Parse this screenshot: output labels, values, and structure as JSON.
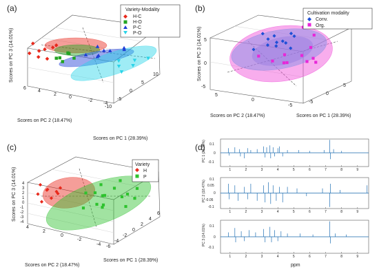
{
  "chart_data": [
    {
      "panel": "(a)",
      "type": "scatter",
      "xlabel": "Scores on PC 1 (28.39%)",
      "ylabel": "Scores on PC 2 (18.47%)",
      "zlabel": "Scores on PC 3 (14.01%)",
      "x_ticks": [
        "-10",
        "-5",
        "0",
        "5",
        "10"
      ],
      "y_ticks": [
        "-4",
        "-2",
        "0",
        "2",
        "4",
        "6"
      ],
      "z_ticks": [],
      "legend_title": "Variety-Modality",
      "legend_position": "top-right",
      "series": [
        {
          "name": "H-C",
          "color": "#e8291c",
          "marker": "diamond",
          "points": [
            [
              -6.5,
              3.5,
              2.2
            ],
            [
              -5,
              2.5,
              2.6
            ],
            [
              -4.2,
              3.8,
              1.8
            ],
            [
              -3.5,
              2,
              2.9
            ],
            [
              -6,
              1.5,
              1.6
            ],
            [
              -4.8,
              4.2,
              3.1
            ],
            [
              -3,
              2.8,
              2.2
            ],
            [
              -5.5,
              3,
              1.4
            ]
          ]
        },
        {
          "name": "H-O",
          "color": "#22a422",
          "marker": "square",
          "points": [
            [
              -4,
              1.2,
              1.2
            ],
            [
              -2.8,
              0.8,
              1.6
            ],
            [
              -3.5,
              2,
              0.8
            ],
            [
              -2,
              1.5,
              1.3
            ],
            [
              -4.5,
              0.5,
              0.9
            ],
            [
              -3,
              0,
              1.1
            ]
          ]
        },
        {
          "name": "P-C",
          "color": "#1f3fd6",
          "marker": "triangle-up",
          "points": [
            [
              1,
              -0.5,
              0.4
            ],
            [
              2.5,
              -1,
              0.8
            ],
            [
              3.5,
              0.5,
              0.2
            ],
            [
              0,
              0.5,
              0.6
            ],
            [
              4.5,
              -1.5,
              0.5
            ],
            [
              1.8,
              0.2,
              -0.2
            ],
            [
              5.5,
              -0.8,
              0.3
            ],
            [
              3,
              1,
              0.9
            ]
          ]
        },
        {
          "name": "P-O",
          "color": "#2ad4e8",
          "marker": "triangle-down",
          "points": [
            [
              2,
              -2.5,
              -1.2
            ],
            [
              4,
              -3,
              -1.6
            ],
            [
              3,
              -1.8,
              -0.8
            ],
            [
              5.5,
              -2.2,
              -1.4
            ],
            [
              1.5,
              -3.2,
              -1.8
            ],
            [
              6.2,
              -3.5,
              -1
            ]
          ]
        }
      ],
      "ellipses": [
        {
          "series": "H-C",
          "color": "#e8291c"
        },
        {
          "series": "H-O",
          "color": "#22a422"
        },
        {
          "series": "P-C",
          "color": "#1f3fd6"
        },
        {
          "series": "P-O",
          "color": "#2ad4e8"
        }
      ]
    },
    {
      "panel": "(b)",
      "type": "scatter",
      "xlabel": "Scores on PC 1 (28.39%)",
      "ylabel": "Scores on PC 2 (18.47%)",
      "zlabel": "Scores on PC 3 (14.01%)",
      "x_ticks": [
        "-5",
        "0",
        "5"
      ],
      "y_ticks": [
        "-5",
        "0",
        "5"
      ],
      "z_ticks": [
        "5",
        "0",
        "-5"
      ],
      "legend_title": "Cultivation modality",
      "legend_position": "top-right",
      "series": [
        {
          "name": "Conv.",
          "color": "#1f4fd6",
          "marker": "diamond",
          "points": [
            [
              -1,
              1,
              3
            ],
            [
              0,
              2,
              3.6
            ],
            [
              1,
              1.5,
              2.6
            ],
            [
              2,
              3,
              3.2
            ],
            [
              -2,
              2.5,
              2.2
            ],
            [
              3,
              1,
              3.7
            ],
            [
              1.5,
              -0.5,
              1.6
            ],
            [
              0.5,
              3.5,
              4.2
            ],
            [
              2.5,
              2,
              2.1
            ],
            [
              -0.5,
              0,
              2.8
            ],
            [
              3.5,
              2.5,
              1.2
            ],
            [
              4,
              1.5,
              2.6
            ]
          ]
        },
        {
          "name": "Org.",
          "color": "#e826d8",
          "marker": "square",
          "points": [
            [
              -3,
              -2,
              1.2
            ],
            [
              -2,
              -3,
              0.6
            ],
            [
              1,
              -4,
              -0.2
            ],
            [
              2,
              -2,
              0.2
            ],
            [
              3,
              -3,
              -0.6
            ],
            [
              0,
              -1,
              1
            ],
            [
              -1,
              -2.5,
              0.1
            ],
            [
              4,
              -1.5,
              0.9
            ],
            [
              5.5,
              -0.5,
              2.6
            ],
            [
              6,
              2,
              3.5
            ],
            [
              -3.5,
              0,
              2
            ],
            [
              2.5,
              -4,
              -1
            ]
          ]
        }
      ],
      "ellipses": [
        {
          "series": "Conv.",
          "color": "#33c8f0"
        },
        {
          "series": "Org.",
          "color": "#f04ad8"
        }
      ]
    },
    {
      "panel": "(c)",
      "type": "scatter",
      "xlabel": "Scores on PC 1 (28.39%)",
      "ylabel": "Scores on PC 2 (18.47%)",
      "zlabel": "Scores on PC 3 (14.01%)",
      "x_ticks": [
        "-6",
        "-4",
        "-2",
        "0",
        "2",
        "4",
        "6"
      ],
      "y_ticks": [
        "-4",
        "-2",
        "0",
        "2",
        "4"
      ],
      "z_ticks": [
        "4",
        "3",
        "2",
        "1",
        "0",
        "-1",
        "-2",
        "-3",
        "-4"
      ],
      "legend_title": "Variety",
      "legend_position": "top-right",
      "series": [
        {
          "name": "H",
          "color": "#e8291c",
          "marker": "diamond",
          "points": [
            [
              -5,
              3,
              2.4
            ],
            [
              -4,
              2.5,
              3
            ],
            [
              -3,
              3.5,
              2.2
            ],
            [
              -4.5,
              1.5,
              1.8
            ],
            [
              -2.5,
              2,
              2.8
            ],
            [
              -5.5,
              2,
              1.4
            ],
            [
              -3.5,
              4,
              3.3
            ],
            [
              -2,
              3,
              1.6
            ],
            [
              -4,
              1,
              2.6
            ]
          ]
        },
        {
          "name": "P",
          "color": "#2ec22e",
          "marker": "square",
          "points": [
            [
              1,
              -1,
              0.6
            ],
            [
              3,
              -2,
              -0.2
            ],
            [
              4,
              0,
              0.5
            ],
            [
              2,
              1,
              0.2
            ],
            [
              5,
              -1,
              -0.8
            ],
            [
              0,
              -2,
              -0.5
            ],
            [
              3.5,
              1.5,
              1
            ],
            [
              -1,
              0,
              -1.2
            ],
            [
              2.5,
              -3,
              -1.6
            ],
            [
              4.5,
              -2.5,
              -1
            ],
            [
              1.5,
              -0.5,
              -2
            ],
            [
              5.5,
              0.5,
              1.2
            ],
            [
              6,
              -1.5,
              0
            ],
            [
              0.5,
              1,
              0.8
            ],
            [
              -0.5,
              -1.5,
              -0.3
            ],
            [
              3,
              0.5,
              -0.6
            ]
          ]
        }
      ],
      "ellipses": [
        {
          "series": "H",
          "color": "#e8291c"
        },
        {
          "series": "P",
          "color": "#2ec22e"
        }
      ]
    },
    {
      "panel": "(d)",
      "type": "line",
      "xlabel": "ppm",
      "x_ticks": [
        "1",
        "2",
        "3",
        "4",
        "5",
        "6",
        "7",
        "8",
        "9"
      ],
      "xlim": [
        0.4,
        9.7
      ],
      "color": "#1f6fb4",
      "subplots": [
        {
          "ylabel": "PC 1 (28.39%)",
          "y_ticks": [
            "0.1",
            "0",
            "-0.1"
          ],
          "ylim": [
            -0.15,
            0.15
          ],
          "peaks": [
            [
              0.9,
              0.05
            ],
            [
              0.95,
              -0.03
            ],
            [
              1.3,
              0.06
            ],
            [
              1.6,
              0.04
            ],
            [
              1.65,
              -0.04
            ],
            [
              1.9,
              -0.06
            ],
            [
              2.1,
              0.05
            ],
            [
              2.3,
              0.03
            ],
            [
              2.7,
              0.04
            ],
            [
              3.1,
              0.07
            ],
            [
              3.2,
              -0.05
            ],
            [
              3.3,
              0.06
            ],
            [
              3.5,
              0.08
            ],
            [
              3.55,
              -0.06
            ],
            [
              3.7,
              0.06
            ],
            [
              3.8,
              -0.04
            ],
            [
              4.0,
              0.05
            ],
            [
              4.1,
              0.07
            ],
            [
              4.3,
              -0.04
            ],
            [
              4.6,
              0.03
            ],
            [
              5.3,
              0.03
            ],
            [
              6.0,
              0.02
            ],
            [
              6.9,
              0.03
            ],
            [
              7.25,
              0.14
            ],
            [
              7.3,
              -0.07
            ],
            [
              7.5,
              0.04
            ],
            [
              8.0,
              0.02
            ]
          ]
        },
        {
          "ylabel": "PC 2 (18.47%)",
          "y_ticks": [
            "0.1",
            "0.05",
            "0",
            "-0.05",
            "-0.1"
          ],
          "ylim": [
            -0.1,
            0.1
          ],
          "peaks": [
            [
              0.9,
              0.06
            ],
            [
              0.95,
              -0.04
            ],
            [
              1.3,
              0.05
            ],
            [
              1.5,
              -0.05
            ],
            [
              1.9,
              0.04
            ],
            [
              2.1,
              -0.04
            ],
            [
              2.3,
              0.06
            ],
            [
              2.7,
              -0.05
            ],
            [
              3.1,
              0.05
            ],
            [
              3.2,
              -0.06
            ],
            [
              3.4,
              0.07
            ],
            [
              3.55,
              -0.07
            ],
            [
              3.7,
              0.05
            ],
            [
              3.9,
              -0.05
            ],
            [
              4.1,
              0.04
            ],
            [
              4.3,
              -0.06
            ],
            [
              4.6,
              0.04
            ],
            [
              5.2,
              0.03
            ],
            [
              5.8,
              -0.02
            ],
            [
              6.8,
              0.03
            ],
            [
              7.25,
              -0.09
            ],
            [
              7.3,
              0.06
            ],
            [
              7.9,
              0.02
            ],
            [
              9.6,
              0.05
            ]
          ]
        },
        {
          "ylabel": "PC 3 (14.01%)",
          "y_ticks": [
            "0.1",
            "0",
            "-0.1"
          ],
          "ylim": [
            -0.15,
            0.15
          ],
          "peaks": [
            [
              0.9,
              0.04
            ],
            [
              1.3,
              0.08
            ],
            [
              1.35,
              -0.05
            ],
            [
              1.7,
              0.05
            ],
            [
              1.9,
              -0.04
            ],
            [
              2.2,
              0.06
            ],
            [
              2.6,
              0.04
            ],
            [
              3.1,
              0.07
            ],
            [
              3.2,
              -0.05
            ],
            [
              3.5,
              0.09
            ],
            [
              3.6,
              -0.05
            ],
            [
              3.8,
              0.06
            ],
            [
              4.0,
              -0.04
            ],
            [
              4.2,
              0.05
            ],
            [
              4.6,
              0.03
            ],
            [
              5.4,
              0.03
            ],
            [
              6.2,
              0.02
            ],
            [
              7.25,
              0.14
            ],
            [
              7.3,
              -0.06
            ],
            [
              7.6,
              0.03
            ],
            [
              8.3,
              0.02
            ]
          ]
        }
      ]
    }
  ],
  "panel_labels": [
    "(a)",
    "(b)",
    "(c)",
    "(d)"
  ]
}
